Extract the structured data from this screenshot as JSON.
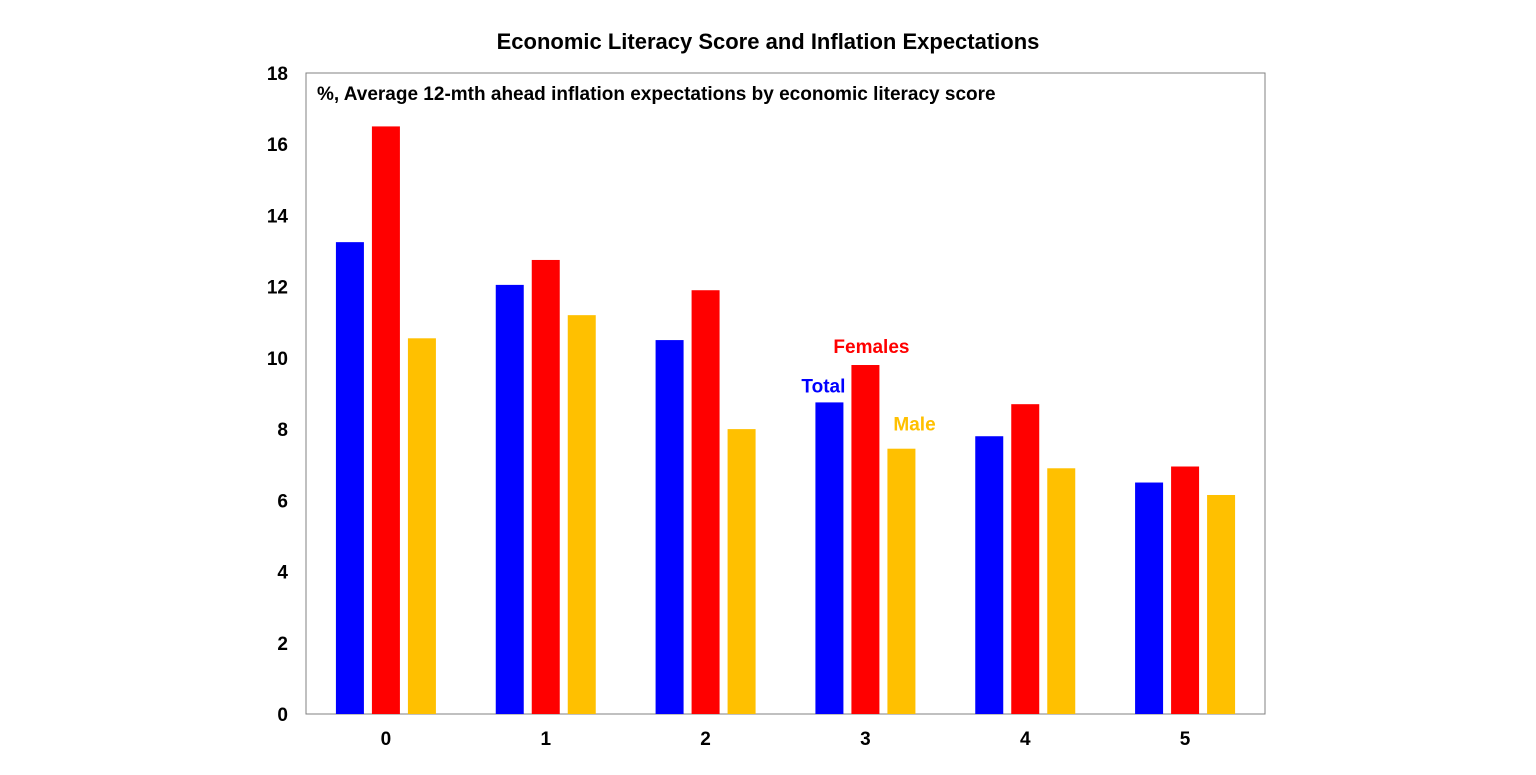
{
  "chart_data": {
    "type": "bar",
    "title": "Economic Literacy Score and Inflation Expectations",
    "subtitle": "%, Average 12-mth ahead inflation expectations by economic literacy score",
    "categories": [
      "0",
      "1",
      "2",
      "3",
      "4",
      "5"
    ],
    "series": [
      {
        "name": "Total",
        "color": "#0000ff",
        "values": [
          13.25,
          12.05,
          10.5,
          8.75,
          7.8,
          6.5
        ]
      },
      {
        "name": "Females",
        "color": "#ff0000",
        "values": [
          16.5,
          12.75,
          11.9,
          9.8,
          8.7,
          6.95
        ]
      },
      {
        "name": "Male",
        "color": "#ffc000",
        "values": [
          10.55,
          11.2,
          8.0,
          7.45,
          6.9,
          6.15
        ]
      }
    ],
    "ylim": [
      0,
      18
    ],
    "yticks": [
      "0",
      "2",
      "4",
      "6",
      "8",
      "10",
      "12",
      "14",
      "16",
      "18"
    ],
    "grid": false,
    "legend": "inline labels above category 3"
  }
}
